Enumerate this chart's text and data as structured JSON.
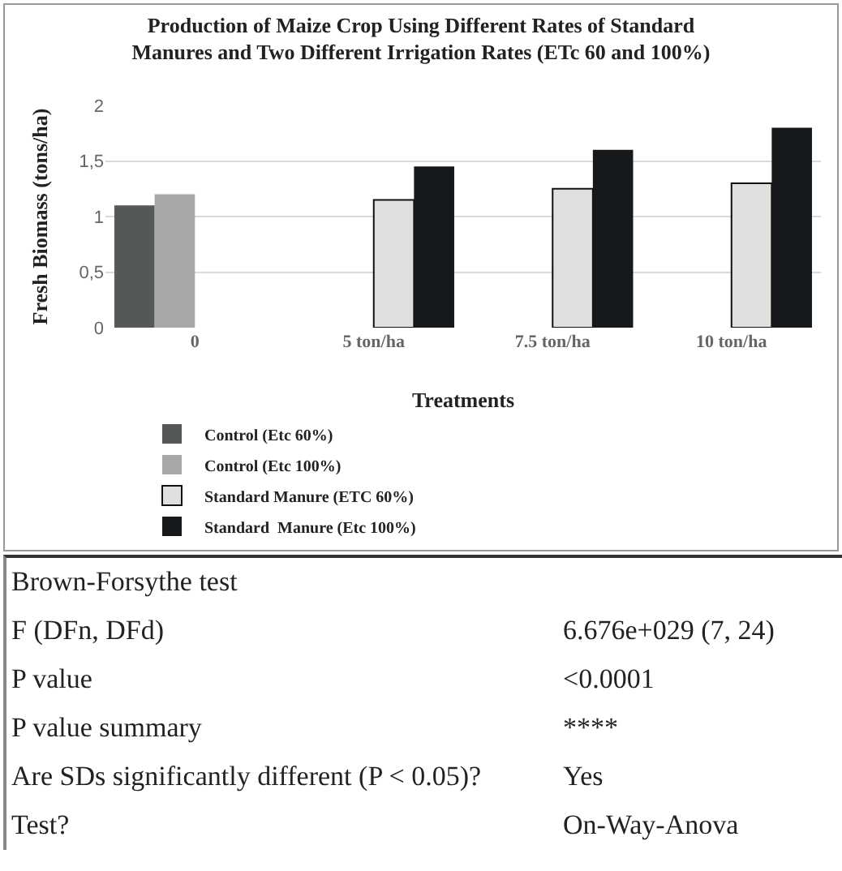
{
  "chart_data": {
    "type": "bar",
    "title": "Production of Maize Crop Using Different Rates of Standard Manures and Two Different Irrigation Rates (ETc 60 and 100%)",
    "xlabel": "Treatments",
    "ylabel": "Fresh Biomass (tons/ha)",
    "categories": [
      "0",
      "5 ton/ha",
      "7.5 ton/ha",
      "10 ton/ha"
    ],
    "series": [
      {
        "name": "Control (Etc 60%)",
        "color": "#555859",
        "values": [
          1.1,
          null,
          null,
          null
        ]
      },
      {
        "name": "Control (Etc 100%)",
        "color": "#a6a8a8",
        "values": [
          1.2,
          null,
          null,
          null
        ]
      },
      {
        "name": "Standard Manure (ETC 60%)",
        "color": "#e0e0de",
        "values": [
          null,
          1.15,
          1.25,
          1.3
        ]
      },
      {
        "name": "Standard  Manure (Etc 100%)",
        "color": "#15191b",
        "values": [
          null,
          1.45,
          1.6,
          1.8
        ]
      }
    ],
    "ylim": [
      0,
      2
    ],
    "yticks": [
      0,
      {
        "value": 0.5,
        "label": "0,5"
      },
      1,
      {
        "value": 1.5,
        "label": "1,5"
      },
      2
    ],
    "grid": "y",
    "legend": "bottom",
    "annotations": [
      "Brown-Forsythe test",
      "F (DFn, DFd)",
      "6.676e+029 (7, 24)",
      "P value",
      "<0.0001",
      "P value summary",
      "****",
      "Are SDs significantly different (P < 0.05)?",
      "Yes",
      "Test?",
      "On-Way-Anova"
    ]
  }
}
